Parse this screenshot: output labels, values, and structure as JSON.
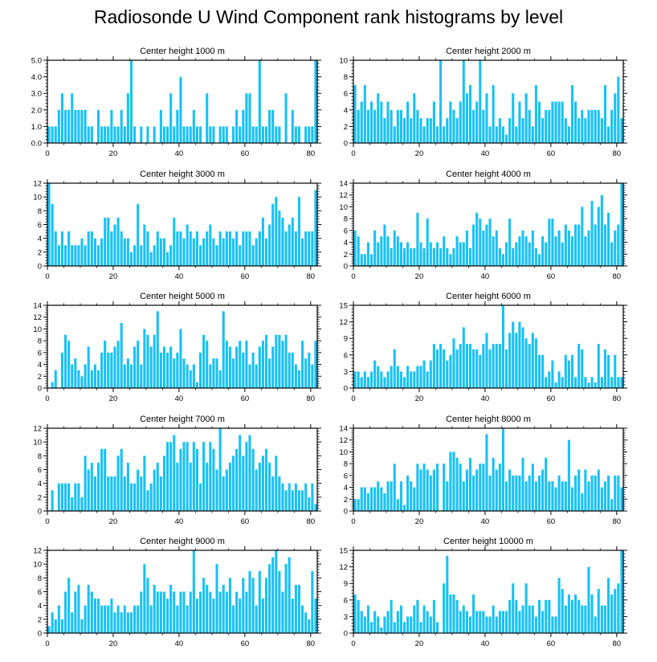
{
  "title": "Radiosonde U Wind Component rank histograms by level",
  "colors": {
    "bar": "#19c1f5",
    "axis": "#000000"
  },
  "chart_data": [
    {
      "type": "bar",
      "title": "Center height 1000 m",
      "xlim": [
        0,
        82
      ],
      "ylim": [
        0,
        5
      ],
      "xticks": [
        0,
        20,
        40,
        60,
        80
      ],
      "yticks": [
        0,
        1,
        2,
        3,
        4,
        5
      ],
      "ytick_labels": [
        "0.0",
        "1.0",
        "2.0",
        "3.0",
        "4.0",
        "5.0"
      ],
      "values": [
        1,
        1,
        1,
        2,
        3,
        2,
        2,
        3,
        2,
        2,
        2,
        2,
        1,
        1,
        0,
        2,
        1,
        1,
        1,
        2,
        1,
        1,
        2,
        1,
        3,
        5,
        1,
        0,
        1,
        0,
        1,
        0,
        1,
        0,
        2,
        1,
        1,
        3,
        1,
        2,
        4,
        1,
        1,
        1,
        2,
        1,
        1,
        0,
        3,
        1,
        1,
        0,
        1,
        1,
        1,
        0,
        1,
        2,
        1,
        2,
        3,
        3,
        1,
        1,
        5,
        1,
        1,
        2,
        2,
        1,
        1,
        0,
        3,
        0,
        2,
        1,
        1,
        0,
        1,
        1,
        1,
        5
      ]
    },
    {
      "type": "bar",
      "title": "Center height 2000 m",
      "xlim": [
        0,
        82
      ],
      "ylim": [
        0,
        10
      ],
      "xticks": [
        0,
        20,
        40,
        60,
        80
      ],
      "yticks": [
        0,
        2,
        4,
        6,
        8,
        10
      ],
      "ytick_labels": [
        "0",
        "2",
        "4",
        "6",
        "8",
        "10"
      ],
      "values": [
        7,
        4,
        5,
        7,
        4,
        5,
        4,
        6,
        5,
        3,
        5,
        4,
        2,
        4,
        4,
        3,
        5,
        3,
        6,
        4,
        3,
        2,
        3,
        3,
        5,
        2,
        10,
        2,
        3,
        5,
        4,
        3,
        5,
        10,
        6,
        7,
        4,
        5,
        10,
        4,
        6,
        2,
        7,
        2,
        3,
        2,
        1,
        3,
        6,
        2,
        5,
        3,
        6,
        4,
        2,
        7,
        5,
        3,
        4,
        4,
        5,
        5,
        5,
        5,
        3,
        2,
        7,
        5,
        3,
        4,
        3,
        4,
        4,
        4,
        4,
        3,
        7,
        2,
        4,
        6,
        8,
        3
      ]
    },
    {
      "type": "bar",
      "title": "Center height 3000 m",
      "xlim": [
        0,
        82
      ],
      "ylim": [
        0,
        12
      ],
      "xticks": [
        0,
        20,
        40,
        60,
        80
      ],
      "yticks": [
        0,
        2,
        4,
        6,
        8,
        10,
        12
      ],
      "ytick_labels": [
        "0",
        "2",
        "4",
        "6",
        "8",
        "10",
        "12"
      ],
      "values": [
        12,
        9,
        5,
        3,
        5,
        3,
        5,
        3,
        3,
        3,
        4,
        3,
        5,
        5,
        4,
        3,
        4,
        7,
        7,
        5,
        6,
        7,
        5,
        4,
        4,
        2,
        3,
        9,
        3,
        6,
        5,
        2,
        3,
        5,
        4,
        4,
        2,
        3,
        7,
        5,
        5,
        4,
        6,
        5,
        4,
        5,
        3,
        4,
        5,
        6,
        4,
        3,
        5,
        4,
        5,
        5,
        4,
        5,
        3,
        5,
        5,
        5,
        3,
        4,
        5,
        7,
        4,
        6,
        9,
        10,
        8,
        7,
        5,
        6,
        7,
        5,
        10,
        4,
        5,
        5,
        5,
        11
      ]
    },
    {
      "type": "bar",
      "title": "Center height 4000 m",
      "xlim": [
        0,
        82
      ],
      "ylim": [
        0,
        14
      ],
      "xticks": [
        0,
        20,
        40,
        60,
        80
      ],
      "yticks": [
        0,
        2,
        4,
        6,
        8,
        10,
        12,
        14
      ],
      "ytick_labels": [
        "0",
        "2",
        "4",
        "6",
        "8",
        "10",
        "12",
        "14"
      ],
      "values": [
        6,
        5,
        2,
        2,
        4,
        2,
        6,
        4,
        5,
        7,
        5,
        3,
        6,
        5,
        4,
        3,
        4,
        3,
        3,
        9,
        4,
        3,
        8,
        4,
        3,
        4,
        3,
        5,
        3,
        2,
        3,
        5,
        4,
        4,
        6,
        3,
        7,
        9,
        8,
        6,
        7,
        8,
        5,
        6,
        3,
        2,
        4,
        8,
        3,
        4,
        5,
        6,
        5,
        4,
        6,
        3,
        2,
        5,
        4,
        8,
        8,
        5,
        6,
        4,
        7,
        6,
        5,
        7,
        7,
        10,
        5,
        6,
        11,
        7,
        10,
        12,
        7,
        9,
        4,
        6,
        7,
        14
      ]
    },
    {
      "type": "bar",
      "title": "Center height 5000 m",
      "xlim": [
        0,
        82
      ],
      "ylim": [
        0,
        14
      ],
      "xticks": [
        0,
        20,
        40,
        60,
        80
      ],
      "yticks": [
        0,
        2,
        4,
        6,
        8,
        10,
        12,
        14
      ],
      "ytick_labels": [
        "0",
        "2",
        "4",
        "6",
        "8",
        "10",
        "12",
        "14"
      ],
      "values": [
        0,
        1,
        3,
        0,
        6,
        9,
        8,
        4,
        5,
        3,
        2,
        4,
        7,
        3,
        4,
        3,
        6,
        8,
        6,
        6,
        7,
        8,
        11,
        4,
        5,
        4,
        7,
        8,
        4,
        10,
        9,
        7,
        9,
        13,
        6,
        7,
        6,
        7,
        5,
        6,
        10,
        5,
        4,
        3,
        4,
        1,
        6,
        9,
        8,
        4,
        5,
        5,
        3,
        13,
        8,
        7,
        5,
        7,
        8,
        6,
        8,
        4,
        6,
        4,
        7,
        8,
        9,
        5,
        7,
        9,
        9,
        8,
        9,
        6,
        6,
        4,
        3,
        8,
        5,
        6,
        4,
        8
      ]
    },
    {
      "type": "bar",
      "title": "Center height 6000 m",
      "xlim": [
        0,
        82
      ],
      "ylim": [
        0,
        15
      ],
      "xticks": [
        0,
        20,
        40,
        60,
        80
      ],
      "yticks": [
        0,
        3,
        6,
        9,
        12,
        15
      ],
      "ytick_labels": [
        "0",
        "3",
        "6",
        "9",
        "12",
        "15"
      ],
      "values": [
        3,
        3,
        2,
        3,
        2,
        3,
        5,
        4,
        3,
        2,
        3,
        4,
        7,
        4,
        3,
        2,
        4,
        3,
        3,
        4,
        4,
        5,
        3,
        5,
        8,
        7,
        8,
        7,
        5,
        6,
        9,
        7,
        8,
        11,
        8,
        8,
        7,
        7,
        6,
        8,
        10,
        7,
        8,
        8,
        8,
        15,
        7,
        10,
        12,
        10,
        12,
        11,
        9,
        8,
        10,
        9,
        6,
        6,
        2,
        3,
        5,
        1,
        3,
        2,
        6,
        5,
        6,
        2,
        8,
        7,
        2,
        1,
        2,
        1,
        8,
        2,
        7,
        6,
        2,
        6,
        2,
        2
      ]
    },
    {
      "type": "bar",
      "title": "Center height 7000 m",
      "xlim": [
        0,
        82
      ],
      "ylim": [
        0,
        12
      ],
      "xticks": [
        0,
        20,
        40,
        60,
        80
      ],
      "yticks": [
        0,
        2,
        4,
        6,
        8,
        10,
        12
      ],
      "ytick_labels": [
        "0",
        "2",
        "4",
        "6",
        "8",
        "10",
        "12"
      ],
      "values": [
        0,
        3,
        0,
        4,
        4,
        4,
        4,
        2,
        4,
        4,
        2,
        8,
        6,
        7,
        5,
        7,
        9,
        9,
        5,
        5,
        5,
        8,
        9,
        5,
        7,
        4,
        4,
        6,
        5,
        8,
        3,
        4,
        6,
        7,
        5,
        8,
        10,
        10,
        11,
        7,
        9,
        10,
        10,
        7,
        10,
        9,
        4,
        10,
        7,
        10,
        9,
        6,
        12,
        5,
        6,
        7,
        8,
        9,
        11,
        8,
        10,
        11,
        9,
        6,
        7,
        8,
        9,
        7,
        5,
        8,
        5,
        4,
        3,
        4,
        3,
        4,
        3,
        3,
        4,
        2,
        4,
        1
      ]
    },
    {
      "type": "bar",
      "title": "Center height 8000 m",
      "xlim": [
        0,
        82
      ],
      "ylim": [
        0,
        14
      ],
      "xticks": [
        0,
        20,
        40,
        60,
        80
      ],
      "yticks": [
        0,
        2,
        4,
        6,
        8,
        10,
        12,
        14
      ],
      "ytick_labels": [
        "0",
        "2",
        "4",
        "6",
        "8",
        "10",
        "12",
        "14"
      ],
      "values": [
        2,
        2,
        4,
        4,
        3,
        4,
        4,
        5,
        4,
        3,
        5,
        5,
        8,
        2,
        5,
        1,
        6,
        5,
        4,
        8,
        7,
        8,
        7,
        6,
        7,
        8,
        0,
        8,
        5,
        10,
        10,
        9,
        8,
        5,
        7,
        9,
        6,
        7,
        8,
        8,
        13,
        6,
        9,
        7,
        8,
        14,
        5,
        7,
        6,
        6,
        6,
        9,
        5,
        6,
        8,
        5,
        6,
        7,
        9,
        5,
        5,
        4,
        6,
        5,
        5,
        12,
        4,
        6,
        7,
        3,
        7,
        5,
        6,
        6,
        7,
        4,
        5,
        6,
        2,
        6,
        6,
        4
      ]
    },
    {
      "type": "bar",
      "title": "Center height 9000 m",
      "xlim": [
        0,
        82
      ],
      "ylim": [
        0,
        12
      ],
      "xticks": [
        0,
        20,
        40,
        60,
        80
      ],
      "yticks": [
        0,
        2,
        4,
        6,
        8,
        10,
        12
      ],
      "ytick_labels": [
        "0",
        "2",
        "4",
        "6",
        "8",
        "10",
        "12"
      ],
      "values": [
        1,
        3,
        2,
        4,
        2,
        6,
        8,
        3,
        6,
        7,
        2,
        4,
        7,
        6,
        5,
        5,
        4,
        4,
        4,
        5,
        3,
        4,
        3,
        4,
        3,
        3,
        4,
        4,
        6,
        10,
        8,
        4,
        7,
        6,
        6,
        6,
        5,
        7,
        6,
        4,
        6,
        6,
        4,
        6,
        12,
        5,
        6,
        8,
        7,
        6,
        5,
        10,
        6,
        7,
        6,
        8,
        4,
        6,
        5,
        8,
        6,
        9,
        8,
        4,
        9,
        5,
        8,
        10,
        11,
        12,
        9,
        6,
        10,
        11,
        5,
        7,
        7,
        4,
        3,
        2,
        9,
        5
      ]
    },
    {
      "type": "bar",
      "title": "Center height 10000 m",
      "xlim": [
        0,
        82
      ],
      "ylim": [
        0,
        15
      ],
      "xticks": [
        0,
        20,
        40,
        60,
        80
      ],
      "yticks": [
        0,
        3,
        6,
        9,
        12,
        15
      ],
      "ytick_labels": [
        "0",
        "3",
        "6",
        "9",
        "12",
        "15"
      ],
      "values": [
        7,
        6,
        4,
        3,
        5,
        2,
        4,
        3,
        1,
        3,
        4,
        6,
        2,
        4,
        5,
        2,
        3,
        3,
        5,
        6,
        2,
        5,
        4,
        3,
        6,
        2,
        0,
        9,
        14,
        7,
        7,
        6,
        4,
        5,
        4,
        3,
        7,
        4,
        4,
        4,
        3,
        3,
        5,
        3,
        4,
        4,
        4,
        6,
        9,
        6,
        4,
        5,
        9,
        5,
        5,
        3,
        6,
        4,
        6,
        6,
        3,
        3,
        10,
        8,
        5,
        7,
        6,
        7,
        6,
        5,
        5,
        12,
        7,
        3,
        8,
        5,
        5,
        10,
        7,
        8,
        9,
        15
      ]
    }
  ]
}
